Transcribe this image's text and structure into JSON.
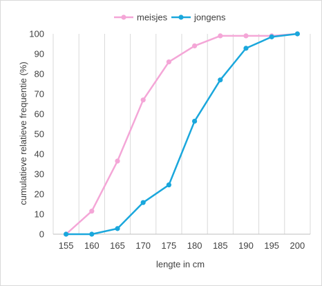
{
  "chart_data": {
    "type": "line",
    "title": "",
    "xlabel": "lengte in cm",
    "ylabel": "cumulatieve relatieve frequentie (%)",
    "x": [
      155,
      160,
      165,
      170,
      175,
      180,
      185,
      190,
      195,
      200
    ],
    "xlim": [
      155,
      200
    ],
    "ylim": [
      0,
      100
    ],
    "yticks": [
      0,
      10,
      20,
      30,
      40,
      50,
      60,
      70,
      80,
      90,
      100
    ],
    "grid": "vertical",
    "legend_position": "top",
    "series": [
      {
        "name": "meisjes",
        "color": "#f4a6d7",
        "values": [
          0,
          11.5,
          36.5,
          67,
          86,
          94,
          99,
          99,
          99,
          100
        ]
      },
      {
        "name": "jongens",
        "color": "#1aa7dc",
        "values": [
          0,
          0,
          2.8,
          15.8,
          24.6,
          56.4,
          77,
          92.8,
          98.5,
          100
        ]
      }
    ]
  }
}
